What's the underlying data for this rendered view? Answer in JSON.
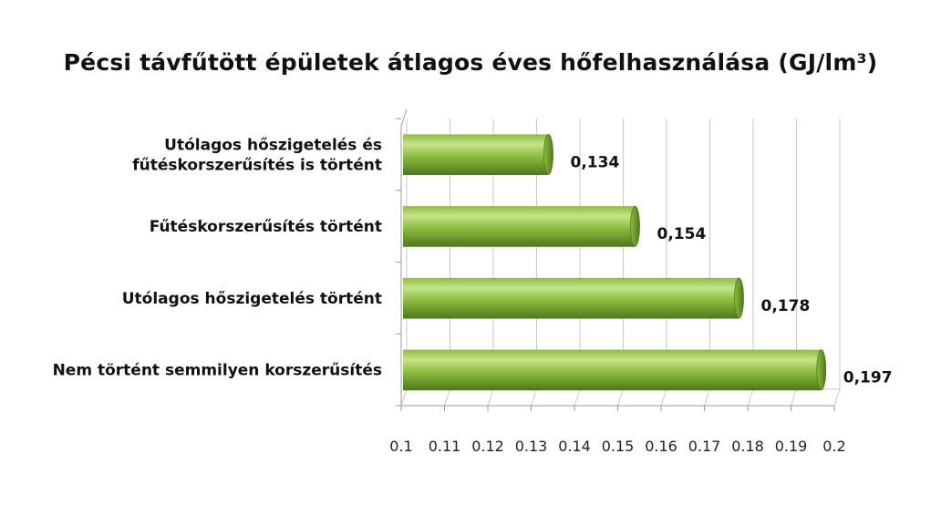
{
  "chart_data": {
    "type": "bar",
    "orientation": "horizontal",
    "title": "Pécsi távfűtött épületek átlagos éves hőfelhasználása (GJ/lm³)",
    "categories": [
      [
        "Utólagos hőszigetelés és",
        "fűtéskorszerűsítés is történt"
      ],
      [
        "Fűtéskorszerűsítés történt"
      ],
      [
        "Utólagos hőszigetelés történt"
      ],
      [
        "Nem történt semmilyen korszerűsítés"
      ]
    ],
    "values": [
      0.134,
      0.154,
      0.178,
      0.197
    ],
    "value_labels": [
      "0,134",
      "0,154",
      "0,178",
      "0,197"
    ],
    "xlim": [
      0.1,
      0.2
    ],
    "xticks": [
      0.1,
      0.11,
      0.12,
      0.13,
      0.14,
      0.15,
      0.16,
      0.17,
      0.18,
      0.19,
      0.2
    ],
    "xtick_labels": [
      "0.1",
      "0.11",
      "0.12",
      "0.13",
      "0.14",
      "0.15",
      "0.16",
      "0.17",
      "0.18",
      "0.19",
      "0.2"
    ],
    "grid": true,
    "legend": "none",
    "bar_color": "#8cbd3f",
    "bar_dark_color": "#4f7a1a",
    "style": "3d-cylinder"
  }
}
